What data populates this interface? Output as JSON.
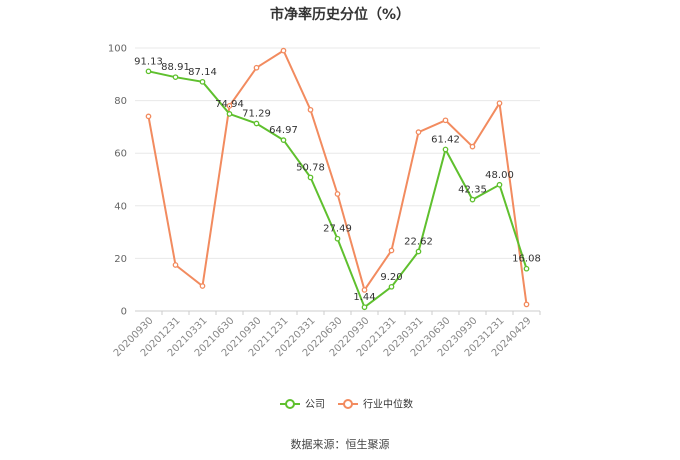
{
  "title": "市净率历史分位（%）",
  "source": "数据来源：恒生聚源",
  "colors": {
    "company": "#5fc02e",
    "industry": "#f28b5f",
    "grid": "#e8e8e8",
    "axis": "#cccccc"
  },
  "chart_data": {
    "type": "line",
    "title": "市净率历史分位（%）",
    "xlabel": "",
    "ylabel": "",
    "ylim": [
      0,
      100
    ],
    "yticks": [
      0,
      20,
      40,
      60,
      80,
      100
    ],
    "grid": true,
    "legend_position": "bottom",
    "categories": [
      "20200930",
      "20201231",
      "20210331",
      "20210630",
      "20210930",
      "20211231",
      "20220331",
      "20220630",
      "20220930",
      "20221231",
      "20230331",
      "20230630",
      "20230930",
      "20231231",
      "20240429"
    ],
    "series": [
      {
        "name": "公司",
        "color": "#5fc02e",
        "values": [
          91.13,
          88.91,
          87.14,
          74.94,
          71.29,
          64.97,
          50.78,
          27.49,
          1.44,
          9.2,
          22.62,
          61.42,
          42.35,
          48.0,
          16.08
        ],
        "labels": [
          "91.13",
          "88.91",
          "87.14",
          "74.94",
          "71.29",
          "64.97",
          "50.78",
          "27.49",
          "1.44",
          "9.20",
          "22.62",
          "61.42",
          "42.35",
          "48.00",
          "16.08"
        ]
      },
      {
        "name": "行业中位数",
        "color": "#f28b5f",
        "values": [
          74,
          17.5,
          9.5,
          78,
          92.5,
          99,
          76.5,
          44.5,
          8,
          23,
          68,
          72.5,
          62.5,
          79,
          2.5
        ]
      }
    ]
  }
}
